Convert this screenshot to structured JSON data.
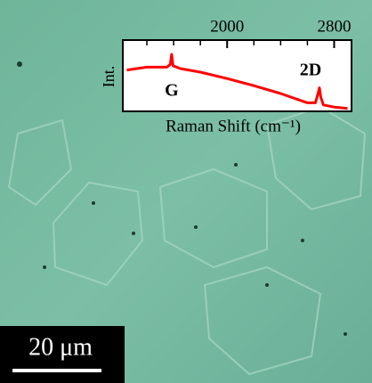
{
  "chart_data": {
    "type": "line",
    "xlabel": "Raman Shift (cm⁻¹)",
    "ylabel": "Int.",
    "x": [
      1250,
      1400,
      1550,
      1575,
      1585,
      1595,
      1650,
      1800,
      2000,
      2200,
      2400,
      2600,
      2660,
      2680,
      2690,
      2700,
      2720,
      2800,
      2900
    ],
    "values": [
      0.58,
      0.62,
      0.62,
      0.66,
      0.8,
      0.64,
      0.6,
      0.55,
      0.46,
      0.36,
      0.25,
      0.12,
      0.12,
      0.25,
      0.33,
      0.2,
      0.09,
      0.06,
      0.04
    ],
    "color": "#ff0000",
    "xlim": [
      1220,
      2930
    ],
    "ylim": [
      0,
      1
    ],
    "xticks": [
      2000,
      2800
    ],
    "xminorticks": [
      1400,
      1600,
      1800,
      2200,
      2400,
      2600
    ],
    "annotations": [
      {
        "text": "G",
        "x": 1585
      },
      {
        "text": "2D",
        "x": 2690
      }
    ],
    "scale_bar": "20 μm"
  }
}
